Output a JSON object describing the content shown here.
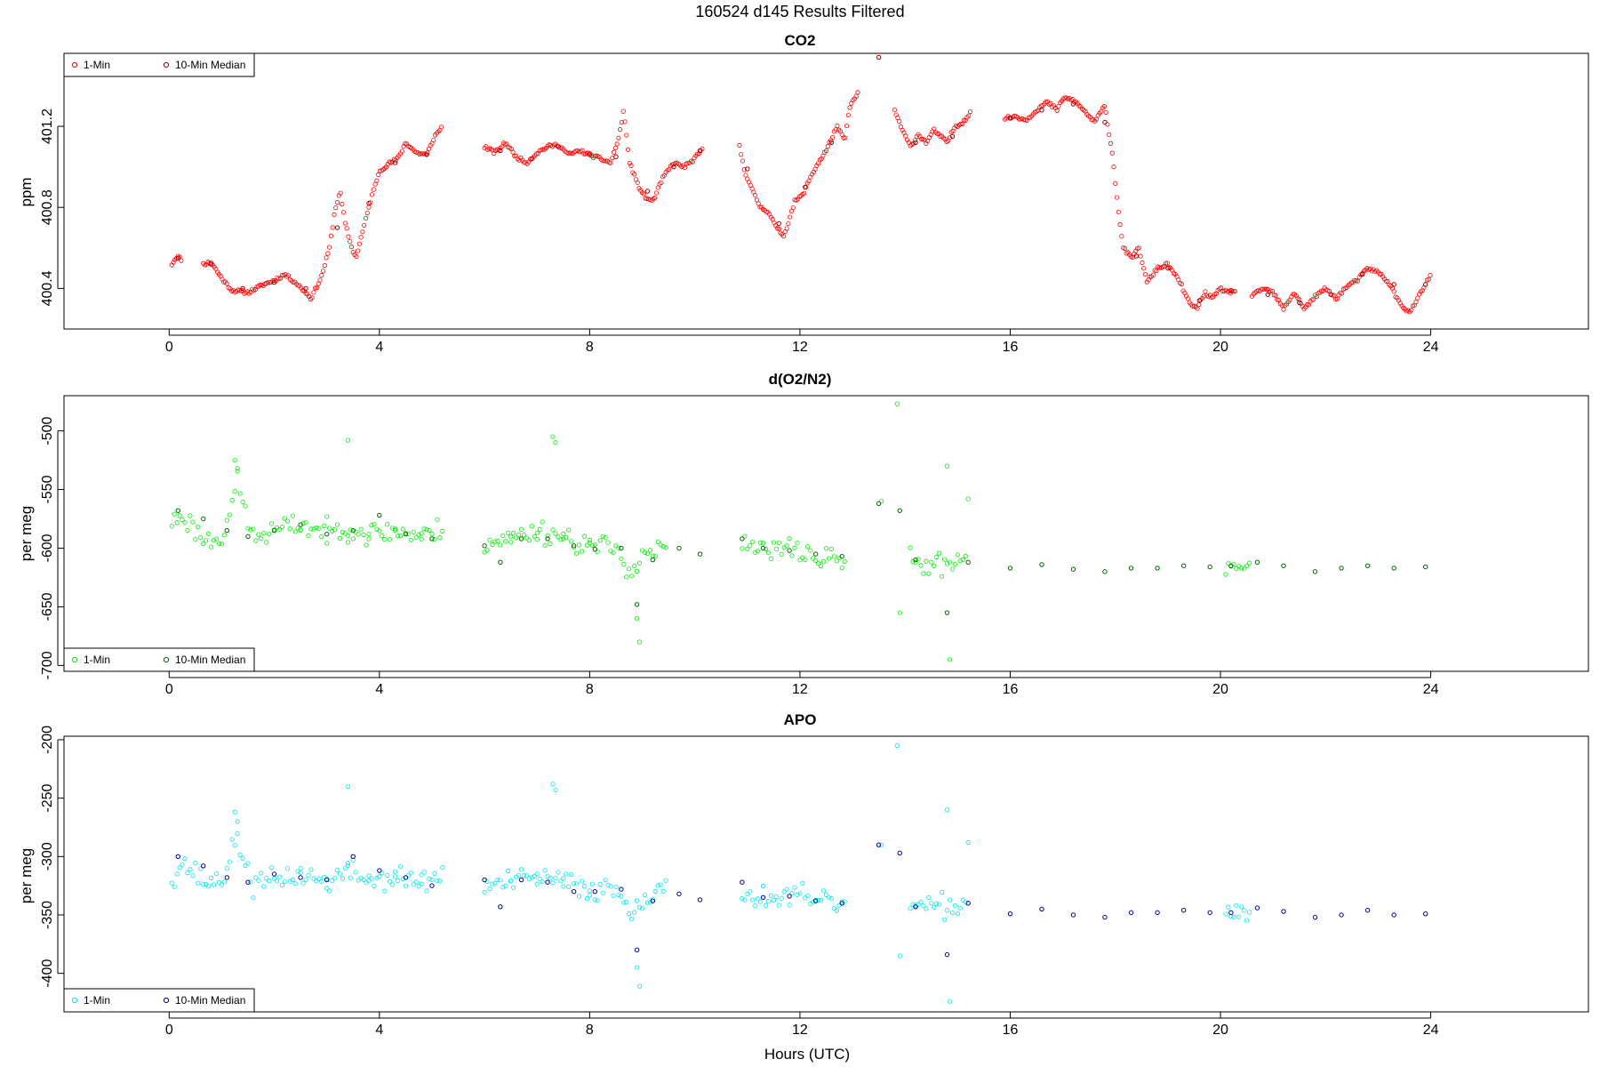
{
  "figure": {
    "title": "160524   d145   Results Filtered",
    "xlabel": "Hours (UTC)"
  },
  "chart_data": [
    {
      "type": "scatter",
      "title": "CO2",
      "ylabel": "ppm",
      "xlim": [
        -2,
        27
      ],
      "ylim": [
        400.2,
        401.56
      ],
      "x_ticks": [
        0,
        4,
        8,
        12,
        16,
        20,
        24
      ],
      "y_ticks": [
        400.4,
        400.8,
        401.2
      ],
      "grid": false,
      "legend": {
        "placement": "top-left",
        "entries": [
          "1-Min",
          "10-Min Median"
        ],
        "colors": [
          "#ff0000",
          "#990000"
        ]
      },
      "series_1min": {
        "color": "#ff0000",
        "segments": [
          {
            "x": [
              0.05,
              0.15,
              0.25
            ],
            "y": [
              400.52,
              400.56,
              400.54
            ]
          },
          {
            "x": [
              0.65,
              0.8,
              1.0,
              1.2,
              1.5,
              1.8,
              2.0,
              2.2,
              2.4,
              2.6,
              2.7,
              2.9,
              3.05,
              3.15,
              3.25,
              3.35,
              3.45,
              3.55,
              3.7,
              3.85,
              4.0,
              4.2,
              4.35,
              4.5,
              4.7,
              4.9,
              5.05,
              5.2
            ],
            "y": [
              400.52,
              400.53,
              400.45,
              400.39,
              400.38,
              400.42,
              400.44,
              400.47,
              400.43,
              400.38,
              400.35,
              400.46,
              400.6,
              400.78,
              400.88,
              400.72,
              400.62,
              400.55,
              400.7,
              400.85,
              400.98,
              401.02,
              401.04,
              401.12,
              401.07,
              401.06,
              401.15,
              401.2
            ]
          },
          {
            "x": [
              6.0,
              6.2,
              6.4,
              6.6,
              6.8,
              7.0,
              7.2,
              7.4,
              7.6,
              7.8,
              8.0,
              8.2,
              8.4,
              8.55,
              8.65,
              8.75,
              8.9,
              9.05,
              9.2,
              9.4,
              9.6,
              9.8,
              10.0,
              10.15
            ],
            "y": [
              401.1,
              401.07,
              401.12,
              401.05,
              401.02,
              401.07,
              401.1,
              401.11,
              401.06,
              401.08,
              401.06,
              401.04,
              401.02,
              401.14,
              401.28,
              401.03,
              400.92,
              400.85,
              400.83,
              400.95,
              401.02,
              401.0,
              401.04,
              401.09
            ]
          },
          {
            "x": [
              10.85,
              10.95,
              11.1,
              11.25,
              11.4,
              11.55,
              11.7,
              11.9,
              12.05,
              12.2,
              12.35,
              12.5,
              12.7,
              12.85,
              12.95,
              13.1
            ],
            "y": [
              401.1,
              400.98,
              400.88,
              400.8,
              400.78,
              400.7,
              400.66,
              400.83,
              400.86,
              400.95,
              401.02,
              401.08,
              401.2,
              401.13,
              401.3,
              401.36
            ]
          },
          {
            "x": [
              13.8,
              13.95,
              14.1,
              14.25,
              14.4,
              14.55,
              14.8,
              14.95,
              15.1,
              15.25
            ],
            "y": [
              401.28,
              401.18,
              401.1,
              401.16,
              401.12,
              401.18,
              401.12,
              401.2,
              401.22,
              401.27
            ]
          },
          {
            "x": [
              15.9,
              16.1,
              16.3,
              16.5,
              16.7,
              16.9,
              17.0,
              17.2,
              17.4,
              17.6,
              17.8,
              17.95,
              18.05,
              18.15,
              18.3,
              18.45,
              18.6,
              18.8,
              19.0,
              19.1,
              19.25,
              19.4,
              19.55,
              19.7,
              19.85,
              20.0,
              20.15,
              20.3
            ],
            "y": [
              401.24,
              401.25,
              401.23,
              401.28,
              401.32,
              401.28,
              401.34,
              401.33,
              401.28,
              401.22,
              401.3,
              401.05,
              400.8,
              400.6,
              400.55,
              400.6,
              400.43,
              400.5,
              400.52,
              400.48,
              400.42,
              400.33,
              400.3,
              400.38,
              400.35,
              400.4,
              400.38,
              400.39
            ]
          },
          {
            "x": [
              20.6,
              20.8,
              21.0,
              21.2,
              21.4,
              21.6,
              21.8,
              22.0,
              22.2,
              22.4,
              22.6,
              22.8,
              23.0,
              23.2,
              23.4,
              23.6,
              23.75,
              23.9,
              24.0
            ],
            "y": [
              400.36,
              400.4,
              400.38,
              400.3,
              400.38,
              400.3,
              400.36,
              400.4,
              400.35,
              400.41,
              400.44,
              400.5,
              400.48,
              400.43,
              400.33,
              400.28,
              400.35,
              400.42,
              400.47
            ]
          }
        ]
      },
      "series_median": {
        "color": "#990000",
        "x": [
          0.17,
          0.8,
          1.4,
          2.0,
          2.6,
          3.2,
          3.8,
          4.3,
          4.9,
          6.3,
          6.9,
          7.4,
          8.0,
          8.5,
          9.1,
          9.6,
          10.1,
          11.0,
          11.6,
          12.1,
          12.6,
          13.5,
          14.2,
          14.9,
          16.0,
          16.6,
          17.2,
          17.8,
          18.4,
          19.0,
          19.6,
          20.2,
          20.9,
          21.5,
          22.1,
          22.7,
          23.3,
          23.9
        ],
        "y": [
          400.55,
          400.52,
          400.4,
          400.43,
          400.4,
          400.7,
          400.82,
          401.02,
          401.06,
          401.08,
          401.04,
          401.1,
          401.06,
          401.05,
          400.88,
          401.0,
          401.08,
          400.99,
          400.72,
          400.9,
          401.12,
          401.54,
          401.12,
          401.15,
          401.24,
          401.28,
          401.31,
          401.22,
          400.56,
          400.5,
          400.34,
          400.39,
          400.37,
          400.33,
          400.37,
          400.47,
          400.42,
          400.42
        ]
      }
    },
    {
      "type": "scatter",
      "title": "d(O2/N2)",
      "ylabel": "per meg",
      "xlim": [
        -2,
        27
      ],
      "ylim": [
        -705,
        -470
      ],
      "x_ticks": [
        0,
        4,
        8,
        12,
        16,
        20,
        24
      ],
      "y_ticks": [
        -700,
        -650,
        -600,
        -550,
        -500
      ],
      "grid": false,
      "legend": {
        "placement": "bottom-left",
        "entries": [
          "1-Min",
          "10-Min Median"
        ],
        "colors": [
          "#00ee00",
          "#006600"
        ]
      },
      "series_1min": {
        "color": "#00ee00",
        "base": [
          [
            0.05,
            -578
          ],
          [
            0.25,
            -572
          ],
          [
            0.7,
            -594
          ],
          [
            1.0,
            -590
          ],
          [
            1.3,
            -545
          ],
          [
            1.6,
            -592
          ],
          [
            2.0,
            -585
          ],
          [
            2.5,
            -580
          ],
          [
            3.0,
            -587
          ],
          [
            3.4,
            -582
          ],
          [
            3.8,
            -588
          ],
          [
            4.3,
            -585
          ],
          [
            4.8,
            -590
          ],
          [
            5.2,
            -584
          ],
          [
            6.0,
            -595
          ],
          [
            6.5,
            -592
          ],
          [
            7.0,
            -585
          ],
          [
            7.5,
            -590
          ],
          [
            8.0,
            -598
          ],
          [
            8.5,
            -600
          ],
          [
            8.8,
            -620
          ],
          [
            9.0,
            -605
          ],
          [
            9.5,
            -600
          ],
          [
            10.1,
            -603
          ],
          [
            10.9,
            -598
          ],
          [
            11.4,
            -603
          ],
          [
            11.9,
            -600
          ],
          [
            12.4,
            -610
          ],
          [
            12.9,
            -608
          ],
          [
            14.1,
            -612
          ],
          [
            14.5,
            -615
          ],
          [
            14.9,
            -612
          ],
          [
            15.2,
            -605
          ],
          [
            15.9,
            -617
          ],
          [
            17.0,
            -618
          ],
          [
            18.0,
            -615
          ],
          [
            19.0,
            -614
          ],
          [
            20.1,
            -616
          ],
          [
            20.6,
            -612
          ],
          [
            21.5,
            -618
          ],
          [
            22.2,
            -618
          ],
          [
            22.8,
            -612
          ],
          [
            23.4,
            -616
          ],
          [
            24.0,
            -617
          ]
        ],
        "outliers": [
          [
            1.25,
            -525
          ],
          [
            1.3,
            -532
          ],
          [
            3.4,
            -508
          ],
          [
            7.3,
            -505
          ],
          [
            7.35,
            -510
          ],
          [
            8.9,
            -660
          ],
          [
            8.95,
            -680
          ],
          [
            13.55,
            -560
          ],
          [
            13.85,
            -477
          ],
          [
            13.9,
            -655
          ],
          [
            14.8,
            -530
          ],
          [
            14.85,
            -695
          ],
          [
            15.2,
            -558
          ]
        ]
      },
      "series_median": {
        "color": "#006600",
        "x": [
          0.17,
          0.65,
          1.1,
          1.5,
          2.0,
          2.5,
          3.0,
          3.5,
          4.0,
          4.5,
          5.0,
          6.0,
          6.3,
          6.7,
          7.2,
          7.7,
          8.1,
          8.6,
          8.9,
          9.2,
          9.7,
          10.1,
          10.9,
          11.3,
          11.8,
          12.3,
          12.8,
          13.5,
          13.9,
          14.2,
          14.8,
          15.2,
          16.0,
          16.6,
          17.2,
          17.8,
          18.3,
          18.8,
          19.3,
          19.8,
          20.2,
          20.7,
          21.2,
          21.8,
          22.3,
          22.8,
          23.3,
          23.9
        ],
        "y": [
          -568,
          -575,
          -585,
          -590,
          -585,
          -580,
          -588,
          -585,
          -572,
          -588,
          -592,
          -598,
          -612,
          -592,
          -592,
          -598,
          -601,
          -600,
          -648,
          -610,
          -600,
          -605,
          -592,
          -600,
          -602,
          -605,
          -607,
          -562,
          -568,
          -610,
          -655,
          -612,
          -617,
          -614,
          -618,
          -620,
          -617,
          -617,
          -615,
          -616,
          -615,
          -612,
          -615,
          -620,
          -617,
          -615,
          -617,
          -616
        ]
      }
    },
    {
      "type": "scatter",
      "title": "APO",
      "ylabel": "per meg",
      "xlim": [
        -2,
        27
      ],
      "ylim": [
        -433,
        -197
      ],
      "x_ticks": [
        0,
        4,
        8,
        12,
        16,
        20,
        24
      ],
      "y_ticks": [
        -400,
        -350,
        -300,
        -250,
        -200
      ],
      "grid": false,
      "legend": {
        "placement": "bottom-left",
        "entries": [
          "1-Min",
          "10-Min Median"
        ],
        "colors": [
          "#00e5ee",
          "#000099"
        ]
      },
      "series_1min": {
        "color": "#00e5ee",
        "base": [
          [
            0.05,
            -318
          ],
          [
            0.25,
            -305
          ],
          [
            0.7,
            -322
          ],
          [
            1.0,
            -320
          ],
          [
            1.3,
            -285
          ],
          [
            1.6,
            -325
          ],
          [
            2.0,
            -320
          ],
          [
            2.5,
            -315
          ],
          [
            3.0,
            -322
          ],
          [
            3.4,
            -312
          ],
          [
            3.8,
            -320
          ],
          [
            4.3,
            -318
          ],
          [
            4.8,
            -322
          ],
          [
            5.2,
            -316
          ],
          [
            6.0,
            -325
          ],
          [
            6.5,
            -322
          ],
          [
            7.0,
            -318
          ],
          [
            7.5,
            -322
          ],
          [
            8.0,
            -328
          ],
          [
            8.5,
            -328
          ],
          [
            8.8,
            -345
          ],
          [
            9.0,
            -335
          ],
          [
            9.5,
            -330
          ],
          [
            10.1,
            -333
          ],
          [
            10.9,
            -330
          ],
          [
            11.4,
            -336
          ],
          [
            11.9,
            -334
          ],
          [
            12.4,
            -340
          ],
          [
            12.9,
            -340
          ],
          [
            14.1,
            -342
          ],
          [
            14.5,
            -345
          ],
          [
            14.9,
            -342
          ],
          [
            15.2,
            -337
          ],
          [
            15.9,
            -347
          ],
          [
            17.0,
            -349
          ],
          [
            18.0,
            -346
          ],
          [
            19.0,
            -346
          ],
          [
            20.1,
            -348
          ],
          [
            20.6,
            -345
          ],
          [
            21.5,
            -350
          ],
          [
            22.2,
            -351
          ],
          [
            22.8,
            -346
          ],
          [
            23.4,
            -350
          ],
          [
            24.0,
            -351
          ]
        ],
        "outliers": [
          [
            1.25,
            -262
          ],
          [
            1.3,
            -270
          ],
          [
            3.4,
            -240
          ],
          [
            7.3,
            -238
          ],
          [
            7.35,
            -243
          ],
          [
            8.9,
            -395
          ],
          [
            8.95,
            -411
          ],
          [
            13.55,
            -290
          ],
          [
            13.85,
            -205
          ],
          [
            13.9,
            -385
          ],
          [
            14.8,
            -260
          ],
          [
            14.85,
            -424
          ],
          [
            15.2,
            -288
          ]
        ]
      },
      "series_median": {
        "color": "#000099",
        "x": [
          0.17,
          0.65,
          1.1,
          1.5,
          2.0,
          2.5,
          3.0,
          3.5,
          4.0,
          4.5,
          5.0,
          6.0,
          6.3,
          6.7,
          7.2,
          7.7,
          8.1,
          8.6,
          8.9,
          9.2,
          9.7,
          10.1,
          10.9,
          11.3,
          11.8,
          12.3,
          12.8,
          13.5,
          13.9,
          14.2,
          14.8,
          15.2,
          16.0,
          16.6,
          17.2,
          17.8,
          18.3,
          18.8,
          19.3,
          19.8,
          20.2,
          20.7,
          21.2,
          21.8,
          22.3,
          22.8,
          23.3,
          23.9
        ],
        "y": [
          -300,
          -308,
          -318,
          -322,
          -315,
          -318,
          -320,
          -300,
          -312,
          -318,
          -325,
          -320,
          -343,
          -320,
          -322,
          -330,
          -330,
          -328,
          -380,
          -338,
          -332,
          -337,
          -322,
          -335,
          -334,
          -338,
          -340,
          -290,
          -297,
          -343,
          -384,
          -340,
          -349,
          -345,
          -350,
          -352,
          -348,
          -348,
          -346,
          -348,
          -348,
          -344,
          -347,
          -352,
          -350,
          -346,
          -350,
          -349
        ]
      }
    }
  ]
}
